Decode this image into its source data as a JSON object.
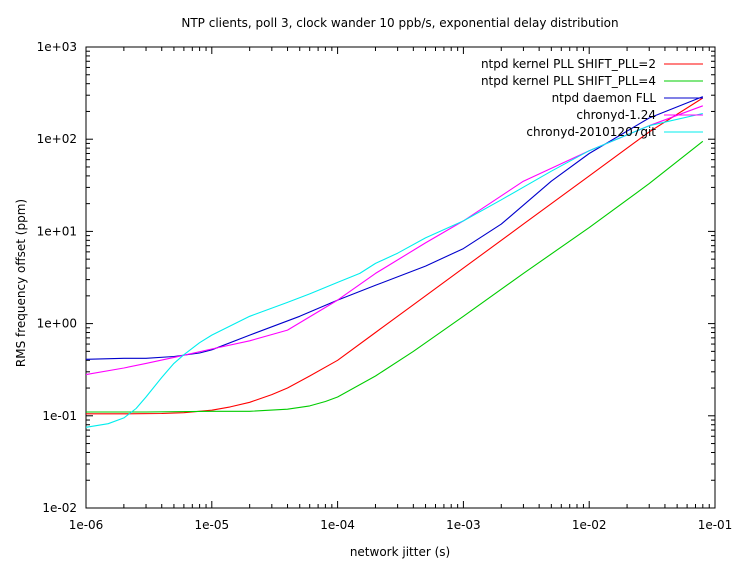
{
  "chart_data": {
    "type": "line",
    "title": "NTP clients, poll 3, clock wander 10 ppb/s, exponential delay distribution",
    "xlabel": "network jitter (s)",
    "ylabel": "RMS frequency offset (ppm)",
    "xscale": "log",
    "yscale": "log",
    "xlim": [
      1e-06,
      0.1
    ],
    "ylim": [
      0.01,
      1000
    ],
    "xticks": [
      1e-06,
      1e-05,
      0.0001,
      0.001,
      0.01,
      0.1
    ],
    "xtick_labels": [
      "1e-06",
      "1e-05",
      "1e-04",
      "1e-03",
      "1e-02",
      "1e-01"
    ],
    "yticks": [
      0.01,
      0.1,
      1,
      10,
      100,
      1000
    ],
    "ytick_labels": [
      "1e-02",
      "1e-01",
      "1e+00",
      "1e+01",
      "1e+02",
      "1e+03"
    ],
    "legend_position": "top-right",
    "grid": false,
    "series": [
      {
        "name": "ntpd kernel PLL SHIFT_PLL=2",
        "color": "#ff0000",
        "x": [
          1e-06,
          2e-06,
          4e-06,
          6e-06,
          1e-05,
          1.4e-05,
          2e-05,
          3e-05,
          4e-05,
          6e-05,
          0.0001,
          0.0002,
          0.0004,
          0.001,
          0.003,
          0.01,
          0.03,
          0.08
        ],
        "y": [
          0.105,
          0.105,
          0.106,
          0.108,
          0.115,
          0.125,
          0.14,
          0.17,
          0.2,
          0.27,
          0.4,
          0.8,
          1.6,
          4,
          12,
          40,
          120,
          280
        ]
      },
      {
        "name": "ntpd kernel PLL SHIFT_PLL=4",
        "color": "#00cc00",
        "x": [
          1e-06,
          3e-06,
          1e-05,
          2e-05,
          4e-05,
          6e-05,
          8e-05,
          0.0001,
          0.0002,
          0.0004,
          0.001,
          0.003,
          0.01,
          0.03,
          0.08
        ],
        "y": [
          0.11,
          0.11,
          0.112,
          0.112,
          0.118,
          0.128,
          0.143,
          0.16,
          0.27,
          0.5,
          1.2,
          3.5,
          11,
          33,
          95
        ]
      },
      {
        "name": "ntpd daemon FLL",
        "color": "#0000cc",
        "x": [
          1e-06,
          2e-06,
          3e-06,
          5e-06,
          8e-06,
          1e-05,
          2e-05,
          5e-05,
          0.0001,
          0.0002,
          0.0005,
          0.001,
          0.002,
          0.005,
          0.01,
          0.03,
          0.08
        ],
        "y": [
          0.41,
          0.42,
          0.42,
          0.44,
          0.48,
          0.52,
          0.75,
          1.2,
          1.8,
          2.6,
          4.2,
          6.5,
          12,
          35,
          70,
          170,
          290
        ]
      },
      {
        "name": "chronyd-1.24",
        "color": "#ff00ff",
        "x": [
          1e-06,
          2e-06,
          3e-06,
          5e-06,
          1e-05,
          2e-05,
          4e-05,
          0.0001,
          0.0002,
          0.0005,
          0.001,
          0.003,
          0.01,
          0.03,
          0.08
        ],
        "y": [
          0.28,
          0.33,
          0.37,
          0.43,
          0.53,
          0.65,
          0.85,
          1.8,
          3.5,
          7.5,
          13,
          35,
          75,
          140,
          230
        ]
      },
      {
        "name": "chronyd-20101207git",
        "color": "#00eeee",
        "x": [
          1e-06,
          1.5e-06,
          2e-06,
          2.5e-06,
          3e-06,
          4e-06,
          5e-06,
          6e-06,
          8e-06,
          1e-05,
          2e-05,
          4e-05,
          6e-05,
          0.0001,
          0.00015,
          0.0002,
          0.0003,
          0.0005,
          0.001,
          0.002,
          0.005,
          0.01,
          0.03,
          0.08
        ],
        "y": [
          0.075,
          0.082,
          0.095,
          0.12,
          0.16,
          0.26,
          0.37,
          0.46,
          0.62,
          0.75,
          1.2,
          1.7,
          2.1,
          2.8,
          3.5,
          4.5,
          5.8,
          8.5,
          13,
          22,
          45,
          75,
          140,
          190
        ]
      }
    ]
  }
}
